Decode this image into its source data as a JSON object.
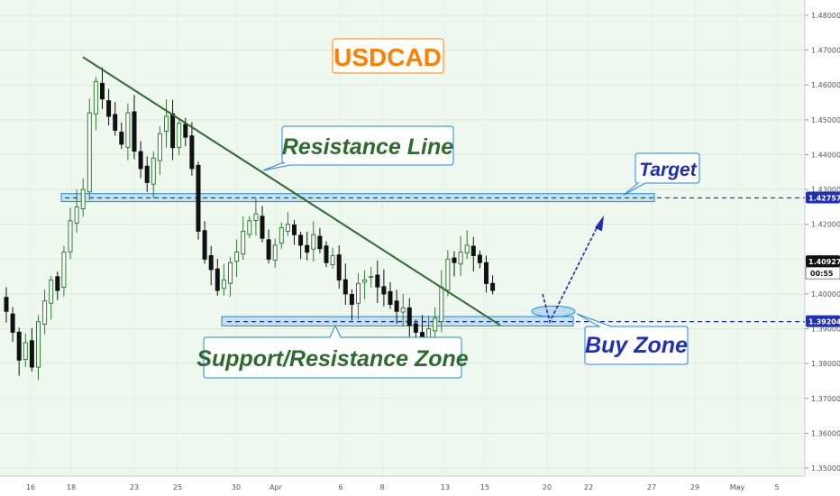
{
  "chart_data": {
    "type": "candlestick",
    "symbol_title": "USDCAD",
    "colors": {
      "background": "#eef8ee",
      "up": "#2e7d32",
      "down": "#111111",
      "zone": "#1e88e5",
      "trendline": "#2e6b2e",
      "title": "#ff7f00",
      "resistance_text": "#2e6b2e",
      "support_text": "#2e6b2e",
      "target_text": "#1f2fb5",
      "buy_text": "#1f2fb5",
      "current_price_bg": "#111111",
      "level_price_bg": "#1f2fb5"
    },
    "ylim": [
      1.345,
      1.485
    ],
    "yticks": [
      "1.48000",
      "1.47000",
      "1.46000",
      "1.45000",
      "1.44000",
      "1.43000",
      "1.42000",
      "1.41000",
      "1.40000",
      "1.39000",
      "1.38000",
      "1.37000",
      "1.36000",
      "1.35000"
    ],
    "xticks": [
      "16",
      "18",
      "23",
      "25",
      "30",
      "Apr",
      "6",
      "8",
      "13",
      "15",
      "20",
      "22",
      "27",
      "29",
      "May",
      "5"
    ],
    "price_tags": {
      "target_level": "1.42757",
      "current_price": "1.40927",
      "countdown": "00:55",
      "support_level": "1.39204"
    },
    "levels": {
      "target": 1.42757,
      "support": 1.39204
    },
    "trendline": {
      "start_price": 1.468,
      "end_price": 1.391
    },
    "zones": {
      "resistance_zone": [
        1.4265,
        1.4288
      ],
      "support_zone": [
        1.3908,
        1.3935
      ]
    },
    "annotations": {
      "resistance_line": "Resistance Line",
      "support_resistance_zone": "Support/Resistance Zone",
      "target": "Target",
      "buy_zone": "Buy Zone"
    },
    "closes": [
      1.395,
      1.389,
      1.381,
      1.386,
      1.379,
      1.392,
      1.398,
      1.404,
      1.401,
      1.412,
      1.421,
      1.425,
      1.43,
      1.452,
      1.461,
      1.456,
      1.451,
      1.447,
      1.443,
      1.452,
      1.441,
      1.436,
      1.432,
      1.439,
      1.446,
      1.451,
      1.442,
      1.449,
      1.445,
      1.436,
      1.418,
      1.41,
      1.407,
      1.401,
      1.404,
      1.409,
      1.412,
      1.418,
      1.421,
      1.423,
      1.416,
      1.41,
      1.414,
      1.419,
      1.42,
      1.417,
      1.414,
      1.412,
      1.417,
      1.413,
      1.409,
      1.411,
      1.404,
      1.4,
      1.397,
      1.403,
      1.404,
      1.405,
      1.402,
      1.4,
      1.397,
      1.395,
      1.396,
      1.391,
      1.389,
      1.387,
      1.39,
      1.393,
      1.402,
      1.41,
      1.409,
      1.412,
      1.414,
      1.411,
      1.409,
      1.403,
      1.401
    ]
  }
}
